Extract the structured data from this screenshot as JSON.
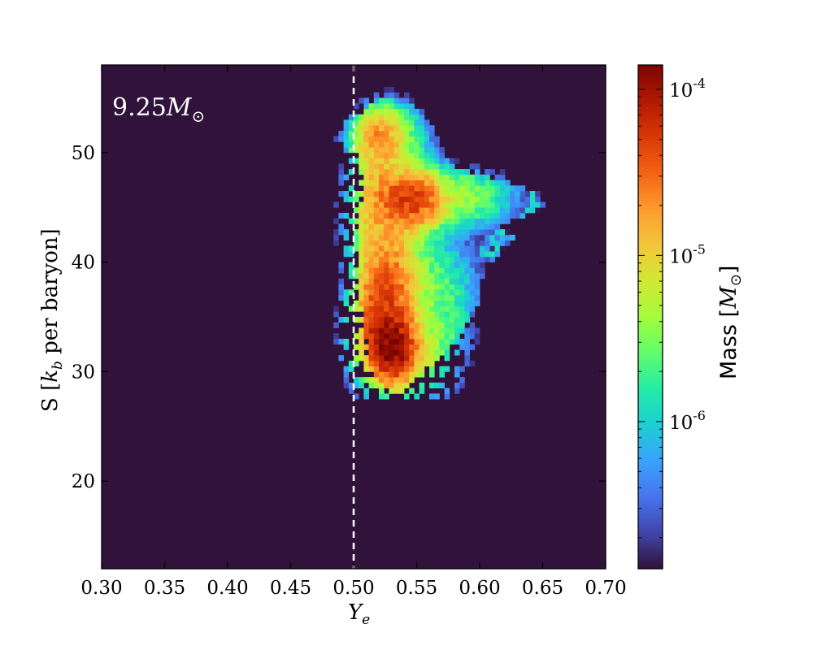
{
  "chart_data": {
    "type": "heatmap",
    "title": "",
    "annotation": {
      "number": "9.25",
      "symbol": "M",
      "sub": "⊙"
    },
    "xlabel": {
      "main": "Y",
      "sub": "e"
    },
    "ylabel": {
      "pre": "S [",
      "sym": "k",
      "sub": "b",
      "post": " per baryon]"
    },
    "xlim": [
      0.3,
      0.7
    ],
    "ylim": [
      12,
      58
    ],
    "xticks": [
      0.3,
      0.35,
      0.4,
      0.45,
      0.5,
      0.55,
      0.6,
      0.65,
      0.7
    ],
    "xtick_labels": [
      "0.30",
      "0.35",
      "0.40",
      "0.45",
      "0.50",
      "0.55",
      "0.60",
      "0.65",
      "0.70"
    ],
    "yticks": [
      20,
      30,
      40,
      50
    ],
    "ytick_labels": [
      "20",
      "30",
      "40",
      "50"
    ],
    "reference_line": {
      "x": 0.5,
      "style": "dashed",
      "color": "#ffffff"
    },
    "colorbar": {
      "label": {
        "pre": "Mass [",
        "sym": "M",
        "sub": "⊙",
        "post": "]"
      },
      "scale": "log",
      "range": [
        1.3e-07,
        0.00014
      ],
      "major_ticks": [
        {
          "value": 1e-06,
          "base": "10",
          "exp": "-6"
        },
        {
          "value": 1e-05,
          "base": "10",
          "exp": "-5"
        },
        {
          "value": 0.0001,
          "base": "10",
          "exp": "-4"
        }
      ]
    },
    "colormap": [
      "#30123b",
      "#4145ab",
      "#4675ed",
      "#39a2fc",
      "#1bcfd4",
      "#24eca6",
      "#61fc6c",
      "#a4fc3b",
      "#d1e834",
      "#f3c63a",
      "#fe9b2d",
      "#f36315",
      "#d93806",
      "#b11901",
      "#7a0402"
    ],
    "background_color": "#30123b",
    "bin_width": {
      "ye": 0.004,
      "s": 0.5
    },
    "clusters": [
      {
        "ye": 0.53,
        "s": 32.3,
        "sigma_ye": 0.01,
        "sigma_s": 1.6,
        "mass": 0.00012
      },
      {
        "ye": 0.522,
        "s": 34.5,
        "sigma_ye": 0.012,
        "sigma_s": 2.5,
        "mass": 4e-05
      },
      {
        "ye": 0.528,
        "s": 38.0,
        "sigma_ye": 0.012,
        "sigma_s": 2.0,
        "mass": 2.5e-05
      },
      {
        "ye": 0.525,
        "s": 42.5,
        "sigma_ye": 0.015,
        "sigma_s": 2.5,
        "mass": 1.2e-05
      },
      {
        "ye": 0.546,
        "s": 45.7,
        "sigma_ye": 0.013,
        "sigma_s": 1.3,
        "mass": 5e-05
      },
      {
        "ye": 0.52,
        "s": 46.5,
        "sigma_ye": 0.012,
        "sigma_s": 2.0,
        "mass": 1.2e-05
      },
      {
        "ye": 0.52,
        "s": 51.5,
        "sigma_ye": 0.01,
        "sigma_s": 1.3,
        "mass": 1.8e-05
      },
      {
        "ye": 0.53,
        "s": 50.0,
        "sigma_ye": 0.015,
        "sigma_s": 2.5,
        "mass": 5e-06
      },
      {
        "ye": 0.58,
        "s": 46.0,
        "sigma_ye": 0.025,
        "sigma_s": 1.5,
        "mass": 4e-06
      },
      {
        "ye": 0.56,
        "s": 36.0,
        "sigma_ye": 0.02,
        "sigma_s": 4.0,
        "mass": 3e-06
      },
      {
        "ye": 0.54,
        "s": 31.0,
        "sigma_ye": 0.02,
        "sigma_s": 2.0,
        "mass": 6e-06
      }
    ],
    "outer_boundary": [
      [
        0.52,
        29.0
      ],
      [
        0.538,
        28.0
      ],
      [
        0.555,
        30.0
      ],
      [
        0.575,
        32.0
      ],
      [
        0.585,
        33.5
      ],
      [
        0.6,
        36.5
      ],
      [
        0.603,
        39.5
      ],
      [
        0.62,
        41.0
      ],
      [
        0.63,
        42.5
      ],
      [
        0.615,
        43.0
      ],
      [
        0.625,
        44.0
      ],
      [
        0.645,
        44.5
      ],
      [
        0.655,
        45.0
      ],
      [
        0.645,
        46.5
      ],
      [
        0.63,
        47.0
      ],
      [
        0.6,
        48.0
      ],
      [
        0.575,
        49.0
      ],
      [
        0.565,
        52.0
      ],
      [
        0.553,
        54.0
      ],
      [
        0.54,
        54.5
      ],
      [
        0.525,
        55.0
      ],
      [
        0.51,
        54.0
      ],
      [
        0.495,
        53.0
      ],
      [
        0.485,
        51.2
      ],
      [
        0.495,
        50.5
      ],
      [
        0.505,
        49.5
      ],
      [
        0.508,
        47.0
      ],
      [
        0.505,
        44.0
      ],
      [
        0.505,
        41.0
      ],
      [
        0.505,
        37.0
      ],
      [
        0.51,
        33.0
      ],
      [
        0.513,
        31.0
      ]
    ]
  }
}
